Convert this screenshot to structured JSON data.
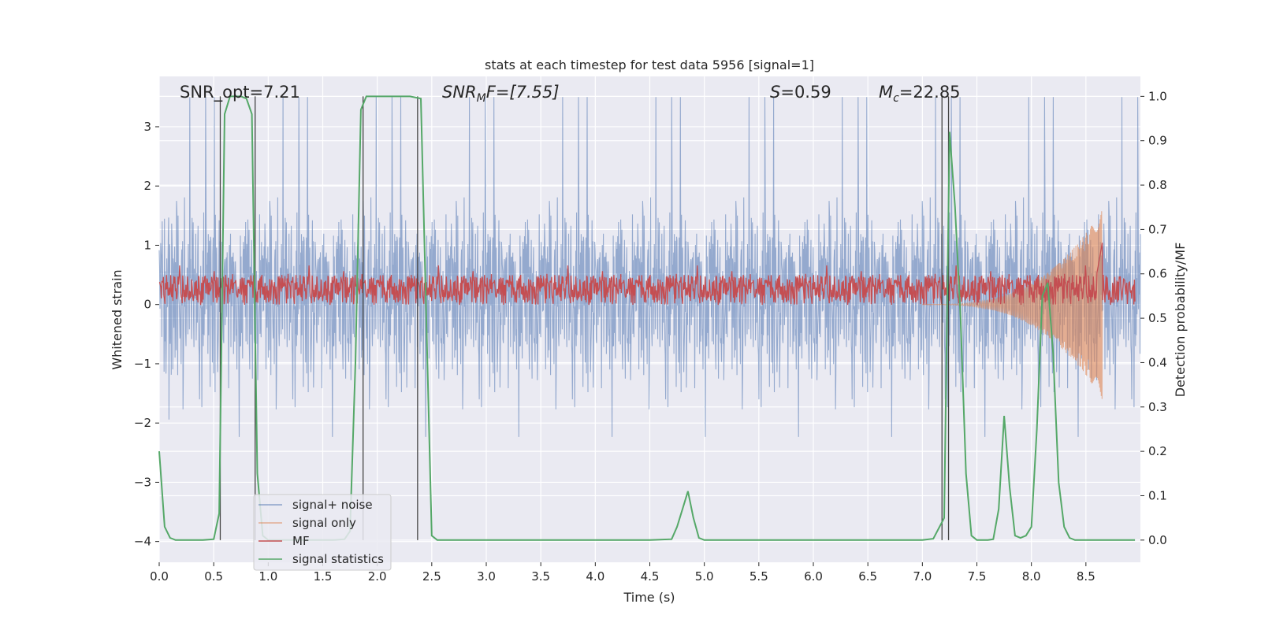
{
  "chart_data": {
    "type": "line",
    "title": "stats at each timestep for test data 5956 [signal=1]",
    "xlabel": "Time (s)",
    "ylabel_left": "Whitened strain",
    "ylabel_right": "Detection probability/MF",
    "xlim": [
      0,
      9.0
    ],
    "ylim_left": [
      -4.35,
      3.85
    ],
    "ylim_right": [
      -0.05,
      1.045
    ],
    "grid": true,
    "legend_position": "lower-left",
    "x_ticks": [
      "0.0",
      "0.5",
      "1.0",
      "1.5",
      "2.0",
      "2.5",
      "3.0",
      "3.5",
      "4.0",
      "4.5",
      "5.0",
      "5.5",
      "6.0",
      "6.5",
      "7.0",
      "7.5",
      "8.0",
      "8.5"
    ],
    "y_ticks_left": [
      "3",
      "2",
      "1",
      "0",
      "−1",
      "−2",
      "−3",
      "−4"
    ],
    "y_ticks_right": [
      "1.0",
      "0.9",
      "0.8",
      "0.7",
      "0.6",
      "0.5",
      "0.4",
      "0.3",
      "0.2",
      "0.1",
      "0.0"
    ],
    "annotations": {
      "snr_opt": "SNR_opt=7.21",
      "snr_mf_sym": "SNR",
      "snr_mf_sub": "M",
      "snr_mf_rest": "F=[7.55]",
      "s_sym": "S",
      "s_rest": "=0.59",
      "mc_sym": "M",
      "mc_sub": "c",
      "mc_rest": "=22.85"
    },
    "vertical_lines_x": [
      0.56,
      0.88,
      1.87,
      2.37,
      7.18,
      7.24
    ],
    "series": [
      {
        "name": "signal+ noise",
        "color": "#4c72b0",
        "axis": "left",
        "description_level": {
          "band": [
            -1.9,
            2.0
          ],
          "peaks": [
            3.5,
            -4.0
          ]
        }
      },
      {
        "name": "signal only",
        "color": "#dd8452",
        "axis": "left",
        "chirp": {
          "start": 7.0,
          "end": 8.65,
          "peak_amplitude": 1.6
        }
      },
      {
        "name": "MF",
        "color": "#c44e52",
        "axis": "right",
        "level": [
          0.53,
          0.6
        ],
        "peak": {
          "x": 8.65,
          "y": 0.67
        }
      },
      {
        "name": "signal statistics",
        "color": "#55a868",
        "axis": "right",
        "x": [
          0.0,
          0.05,
          0.1,
          0.15,
          0.2,
          0.3,
          0.4,
          0.5,
          0.55,
          0.6,
          0.65,
          0.7,
          0.75,
          0.8,
          0.85,
          0.9,
          0.95,
          1.0,
          1.1,
          1.2,
          1.3,
          1.4,
          1.5,
          1.6,
          1.7,
          1.75,
          1.8,
          1.85,
          1.9,
          1.95,
          2.0,
          2.1,
          2.2,
          2.3,
          2.4,
          2.45,
          2.5,
          2.55,
          2.6,
          3.0,
          3.5,
          4.0,
          4.5,
          4.7,
          4.75,
          4.8,
          4.85,
          4.9,
          4.95,
          5.0,
          5.5,
          6.0,
          6.5,
          7.0,
          7.1,
          7.2,
          7.25,
          7.3,
          7.35,
          7.4,
          7.45,
          7.5,
          7.6,
          7.65,
          7.7,
          7.75,
          7.8,
          7.85,
          7.9,
          7.95,
          8.0,
          8.05,
          8.1,
          8.15,
          8.2,
          8.25,
          8.3,
          8.35,
          8.4,
          8.45,
          8.5,
          8.6,
          8.7,
          8.8,
          8.9,
          8.95
        ],
        "y": [
          0.2,
          0.03,
          0.005,
          0.0,
          0.0,
          0.0,
          0.0,
          0.002,
          0.06,
          0.96,
          1.0,
          1.0,
          1.0,
          0.995,
          0.96,
          0.15,
          0.01,
          0.0,
          0.0,
          0.0,
          0.0,
          0.0,
          0.0,
          0.0,
          0.002,
          0.02,
          0.4,
          0.97,
          1.0,
          1.0,
          1.0,
          1.0,
          1.0,
          1.0,
          0.995,
          0.5,
          0.01,
          0.0,
          0.0,
          0.0,
          0.0,
          0.0,
          0.0,
          0.002,
          0.03,
          0.07,
          0.11,
          0.05,
          0.005,
          0.0,
          0.0,
          0.0,
          0.0,
          0.0,
          0.003,
          0.05,
          0.92,
          0.75,
          0.5,
          0.15,
          0.01,
          0.0,
          0.0,
          0.002,
          0.07,
          0.28,
          0.12,
          0.01,
          0.005,
          0.01,
          0.03,
          0.25,
          0.55,
          0.58,
          0.42,
          0.13,
          0.03,
          0.005,
          0.0,
          0.0,
          0.0,
          0.0,
          0.0,
          0.0,
          0.0,
          0.0
        ]
      }
    ]
  }
}
